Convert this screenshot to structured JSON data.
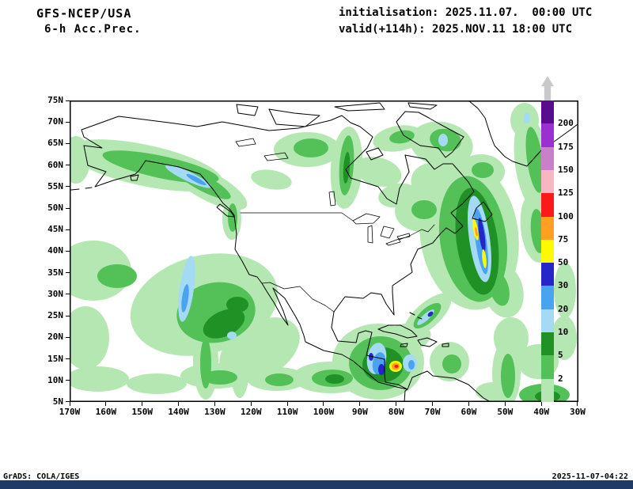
{
  "header": {
    "line1": "GFS-NCEP/USA",
    "line2": "6-h Acc.Prec.",
    "init": "initialisation: 2025.11.07.  00:00 UTC",
    "valid": "valid(+114h): 2025.NOV.11 18:00 UTC"
  },
  "footer": {
    "credit": "GrADS: COLA/IGES",
    "generated": "2025-11-07-04:22"
  },
  "colors": {
    "bottom_bar": "#203a68",
    "frame": "#000000",
    "coastline": "#000000"
  },
  "axes": {
    "lon_labels": [
      "170W",
      "160W",
      "150W",
      "140W",
      "130W",
      "120W",
      "110W",
      "100W",
      "90W",
      "80W",
      "70W",
      "60W",
      "50W",
      "40W",
      "30W"
    ],
    "lat_labels": [
      "75N",
      "70N",
      "65N",
      "60N",
      "55N",
      "50N",
      "45N",
      "40N",
      "35N",
      "30N",
      "25N",
      "20N",
      "15N",
      "10N",
      "5N"
    ]
  },
  "colorbar": {
    "arrow_color": "#c9c9c9",
    "segment_colors": [
      "#5a0b8e",
      "#9a30d0",
      "#c97fc9",
      "#f7b6c2",
      "#fb1919",
      "#ffa022",
      "#fdf900",
      "#2525c9",
      "#4aa3f0",
      "#a5daf5",
      "#1f9125",
      "#53c158",
      "#b5e7b2"
    ],
    "boundary_labels": [
      "200",
      "175",
      "150",
      "125",
      "100",
      "75",
      "50",
      "30",
      "20",
      "10",
      "5",
      "2"
    ]
  },
  "palette": {
    "g1": "#b5e7b2",
    "g2": "#53c158",
    "g3": "#1f9125",
    "b1": "#a5daf5",
    "b2": "#4aa3f0",
    "b3": "#2525c9",
    "y": "#fdf900",
    "o": "#ffa022",
    "r": "#fb1919",
    "p1": "#f7b6c2",
    "p2": "#c97fc9",
    "p3": "#9a30d0",
    "p4": "#5a0b8e"
  },
  "chart_data": {
    "type": "map",
    "model": "GFS-NCEP/USA",
    "field": "6-h accumulated precipitation",
    "init_time": "2025.11.07. 00:00 UTC",
    "valid_time": "2025.NOV.11 18:00 UTC (+114h)",
    "lon_domain": [
      "170W",
      "30W"
    ],
    "lat_domain": [
      "5N",
      "75N"
    ],
    "scale_levels": [
      2,
      5,
      10,
      20,
      30,
      50,
      75,
      100,
      125,
      150,
      175,
      200
    ],
    "precip_cells": [
      [
        "g1",
        95,
        82,
        100,
        26,
        12
      ],
      [
        "g2",
        115,
        84,
        75,
        14,
        12
      ],
      [
        "g1",
        175,
        108,
        55,
        18,
        28
      ],
      [
        "g2",
        168,
        104,
        40,
        10,
        28
      ],
      [
        "b1",
        150,
        96,
        32,
        6,
        25
      ],
      [
        "b2",
        160,
        100,
        14,
        3,
        28
      ],
      [
        "g1",
        45,
        62,
        25,
        12,
        0
      ],
      [
        "g1",
        8,
        75,
        18,
        30,
        0
      ],
      [
        "g1",
        205,
        150,
        12,
        26,
        0
      ],
      [
        "g2",
        206,
        148,
        6,
        18,
        0
      ],
      [
        "g1",
        300,
        62,
        42,
        22,
        0
      ],
      [
        "g2",
        305,
        60,
        22,
        12,
        0
      ],
      [
        "g1",
        350,
        85,
        20,
        52,
        4
      ],
      [
        "g2",
        350,
        82,
        9,
        38,
        4
      ],
      [
        "g3",
        350,
        85,
        4,
        20,
        4
      ],
      [
        "g1",
        255,
        100,
        26,
        12,
        10
      ],
      [
        "g1",
        415,
        48,
        32,
        16,
        -10
      ],
      [
        "g2",
        420,
        46,
        16,
        8,
        -10
      ],
      [
        "g1",
        470,
        55,
        40,
        28,
        10
      ],
      [
        "g2",
        475,
        50,
        20,
        14,
        10
      ],
      [
        "b1",
        472,
        50,
        6,
        8,
        0
      ],
      [
        "g1",
        520,
        90,
        30,
        22,
        0
      ],
      [
        "g2",
        522,
        88,
        14,
        10,
        0
      ],
      [
        "g1",
        390,
        90,
        30,
        18,
        15
      ],
      [
        "g1",
        415,
        120,
        25,
        15,
        -10
      ],
      [
        "g1",
        445,
        140,
        34,
        26,
        0
      ],
      [
        "g2",
        448,
        138,
        16,
        12,
        0
      ],
      [
        "g1",
        575,
        25,
        18,
        22,
        0
      ],
      [
        "b1",
        578,
        22,
        4,
        7,
        0
      ],
      [
        "g1",
        585,
        80,
        22,
        62,
        -8
      ],
      [
        "g2",
        588,
        75,
        10,
        42,
        -8
      ],
      [
        "g1",
        590,
        160,
        20,
        45,
        -5
      ],
      [
        "g2",
        592,
        165,
        9,
        28,
        -5
      ],
      [
        "g1",
        505,
        170,
        62,
        95,
        -8
      ],
      [
        "g1",
        475,
        110,
        45,
        30,
        20
      ],
      [
        "g2",
        510,
        175,
        42,
        80,
        -8
      ],
      [
        "g3",
        515,
        178,
        26,
        68,
        -8
      ],
      [
        "b1",
        518,
        175,
        13,
        55,
        -8
      ],
      [
        "b2",
        520,
        178,
        7,
        42,
        -8
      ],
      [
        "b3",
        521,
        170,
        3.5,
        22,
        -8
      ],
      [
        "y",
        513,
        163,
        3,
        14,
        -10
      ],
      [
        "y",
        524,
        200,
        2.5,
        12,
        -6
      ],
      [
        "o",
        514,
        166,
        1.5,
        6,
        -10
      ],
      [
        "g1",
        548,
        240,
        25,
        35,
        -15
      ],
      [
        "g2",
        543,
        238,
        12,
        22,
        -15
      ],
      [
        "g1",
        30,
        215,
        48,
        38,
        0
      ],
      [
        "g1",
        20,
        300,
        30,
        40,
        0
      ],
      [
        "g1",
        170,
        258,
        95,
        62,
        -15
      ],
      [
        "g1",
        240,
        315,
        55,
        35,
        -30
      ],
      [
        "g2",
        185,
        268,
        50,
        38,
        -10
      ],
      [
        "g3",
        195,
        282,
        28,
        16,
        -25
      ],
      [
        "g3",
        212,
        258,
        14,
        10,
        0
      ],
      [
        "b1",
        148,
        238,
        9,
        42,
        8
      ],
      [
        "b2",
        146,
        250,
        4,
        18,
        8
      ],
      [
        "b1",
        205,
        297,
        6,
        5,
        0
      ],
      [
        "g2",
        60,
        222,
        25,
        15,
        0
      ],
      [
        "g1",
        35,
        352,
        40,
        16,
        0
      ],
      [
        "g1",
        110,
        358,
        38,
        13,
        0
      ],
      [
        "g1",
        185,
        348,
        45,
        16,
        0
      ],
      [
        "g2",
        190,
        350,
        22,
        9,
        0
      ],
      [
        "g1",
        172,
        330,
        16,
        48,
        0
      ],
      [
        "g2",
        172,
        332,
        7,
        32,
        0
      ],
      [
        "g1",
        215,
        338,
        12,
        38,
        0
      ],
      [
        "g1",
        262,
        352,
        38,
        15,
        0
      ],
      [
        "g2",
        265,
        353,
        18,
        8,
        0
      ],
      [
        "g1",
        330,
        350,
        48,
        20,
        0
      ],
      [
        "g2",
        332,
        351,
        26,
        11,
        0
      ],
      [
        "g3",
        335,
        352,
        12,
        6,
        0
      ],
      [
        "g1",
        390,
        330,
        58,
        48,
        0
      ],
      [
        "g2",
        393,
        332,
        40,
        34,
        0
      ],
      [
        "g3",
        396,
        334,
        26,
        22,
        0
      ],
      [
        "b1",
        388,
        326,
        12,
        20,
        10
      ],
      [
        "b2",
        391,
        332,
        8,
        14,
        10
      ],
      [
        "b3",
        394,
        340,
        4,
        7,
        0
      ],
      [
        "b3",
        381,
        324,
        3,
        5,
        0
      ],
      [
        "y",
        412,
        336,
        8,
        7,
        0
      ],
      [
        "o",
        412,
        336,
        5,
        4.5,
        0
      ],
      [
        "r",
        413,
        336,
        2.5,
        2,
        0
      ],
      [
        "b1",
        430,
        332,
        9,
        11,
        0
      ],
      [
        "b2",
        432,
        334,
        4,
        6,
        0
      ],
      [
        "g1",
        425,
        300,
        32,
        18,
        -10
      ],
      [
        "g1",
        452,
        272,
        38,
        16,
        -42
      ],
      [
        "g2",
        452,
        272,
        22,
        9,
        -42
      ],
      [
        "b1",
        450,
        274,
        14,
        4,
        -42
      ],
      [
        "b3",
        456,
        270,
        4,
        2.5,
        -42
      ],
      [
        "g1",
        480,
        330,
        25,
        25,
        0
      ],
      [
        "g2",
        483,
        333,
        12,
        12,
        0
      ],
      [
        "g1",
        552,
        345,
        18,
        42,
        0
      ],
      [
        "g2",
        554,
        348,
        9,
        28,
        0
      ],
      [
        "g1",
        592,
        330,
        26,
        22,
        0
      ],
      [
        "g1",
        625,
        300,
        16,
        28,
        0
      ],
      [
        "g1",
        535,
        368,
        22,
        12,
        0
      ],
      [
        "g2",
        600,
        372,
        32,
        14,
        0
      ],
      [
        "g3",
        604,
        374,
        16,
        7,
        0
      ],
      [
        "g1",
        626,
        240,
        14,
        35,
        0
      ],
      [
        "g1",
        558,
        300,
        22,
        26,
        0
      ]
    ]
  }
}
